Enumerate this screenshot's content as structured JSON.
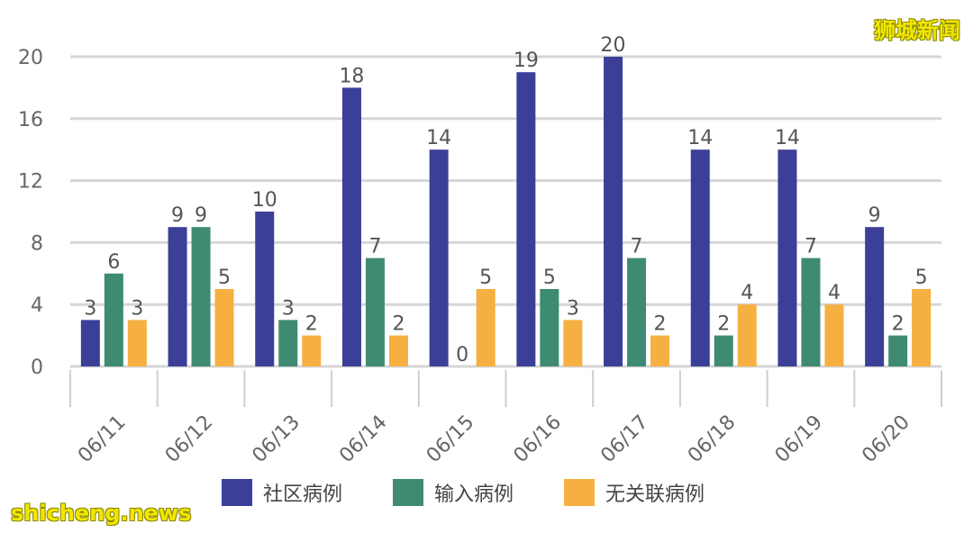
{
  "chart_data": {
    "type": "bar",
    "categories": [
      "06/11",
      "06/12",
      "06/13",
      "06/14",
      "06/15",
      "06/16",
      "06/17",
      "06/18",
      "06/19",
      "06/20"
    ],
    "series": [
      {
        "name": "社区病例",
        "color": "#3b3f98",
        "values": [
          3,
          9,
          10,
          18,
          14,
          19,
          20,
          14,
          14,
          9
        ]
      },
      {
        "name": "输入病例",
        "color": "#3f8a72",
        "values": [
          6,
          9,
          3,
          7,
          0,
          5,
          7,
          2,
          7,
          2
        ]
      },
      {
        "name": "无关联病例",
        "color": "#f5b041",
        "values": [
          3,
          5,
          2,
          2,
          5,
          3,
          2,
          4,
          4,
          5
        ]
      }
    ],
    "yticks": [
      0,
      4,
      8,
      12,
      16,
      20
    ],
    "ylim": [
      0,
      20
    ],
    "grid": true,
    "legend_position": "bottom",
    "title": "",
    "xlabel": "",
    "ylabel": ""
  },
  "watermarks": {
    "top_right": "狮城新闻",
    "bottom_left": "shicheng.news"
  }
}
